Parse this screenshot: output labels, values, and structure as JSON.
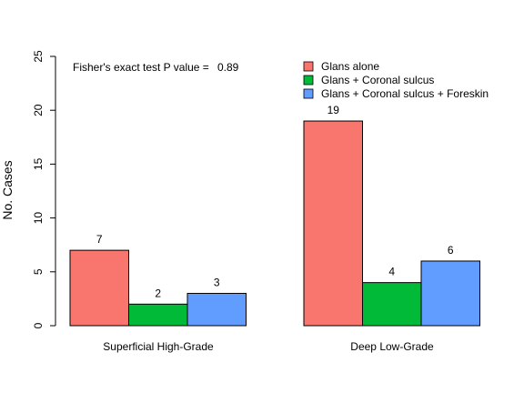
{
  "chart_data": {
    "type": "bar",
    "categories": [
      "Superficial High-Grade",
      "Deep Low-Grade"
    ],
    "series": [
      {
        "name": "Glans alone",
        "values": [
          7,
          19
        ],
        "color": "#F8766D"
      },
      {
        "name": "Glans + Coronal sulcus",
        "values": [
          2,
          4
        ],
        "color": "#00BA38"
      },
      {
        "name": "Glans + Coronal sulcus + Foreskin",
        "values": [
          3,
          6
        ],
        "color": "#619CFF"
      }
    ],
    "ylabel": "No. Cases",
    "ylim": [
      0,
      25
    ],
    "yticks": [
      0,
      5,
      10,
      15,
      20,
      25
    ],
    "data_labels": true,
    "legend_position": "top-right",
    "grid": false
  },
  "annotation": {
    "prefix": "Fisher's exact test P value =",
    "value": "0.89"
  }
}
